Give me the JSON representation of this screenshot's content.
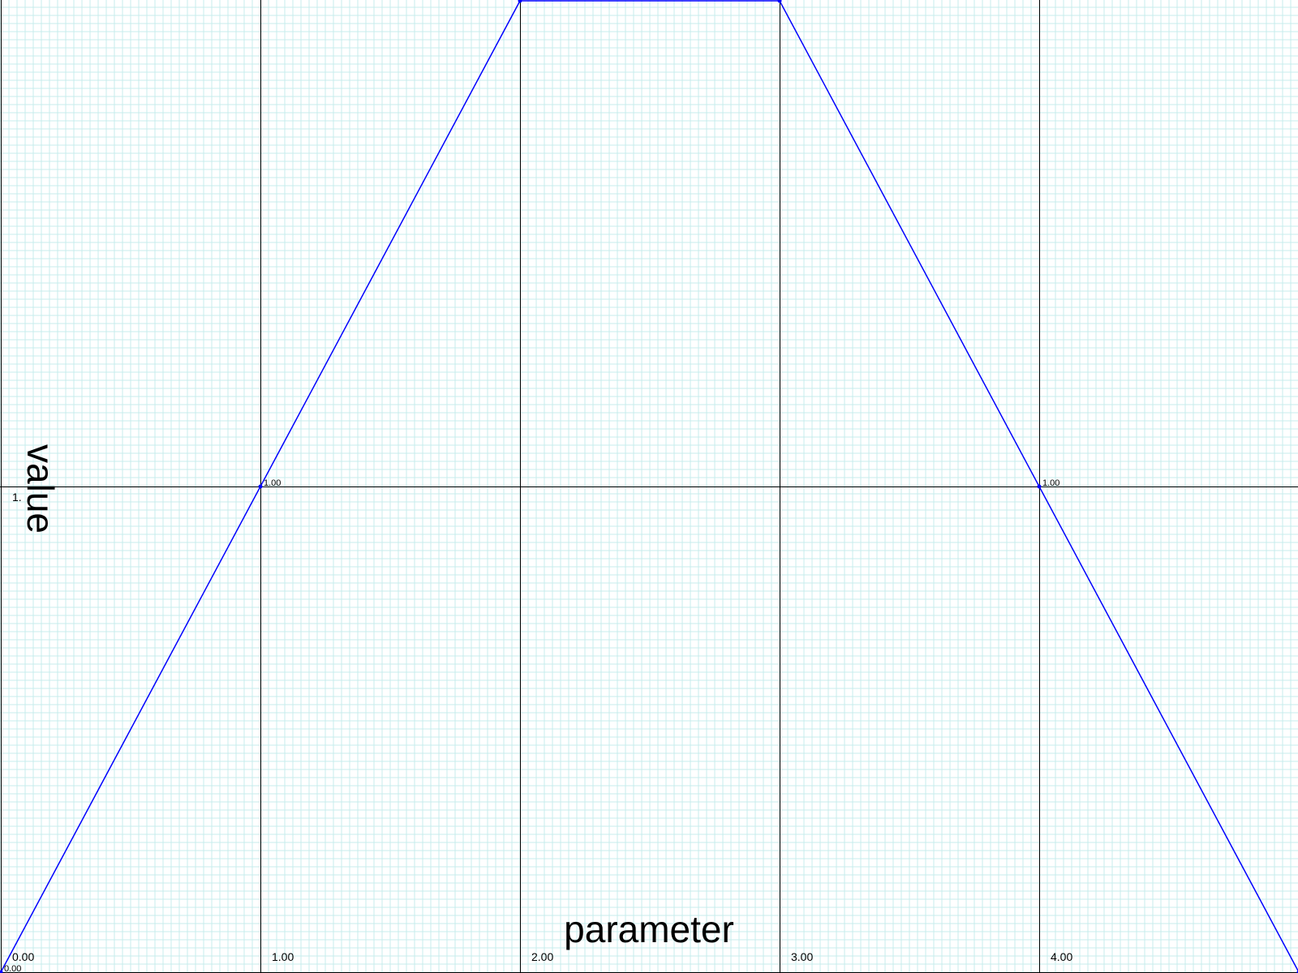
{
  "chart_data": {
    "type": "line",
    "title": "",
    "xlabel": "parameter",
    "ylabel": "value",
    "xlim": [
      0,
      5
    ],
    "ylim": [
      0,
      2
    ],
    "x_major_ticks": [
      0,
      1,
      2,
      3,
      4
    ],
    "x_tick_labels": [
      "0.00",
      "1.00",
      "2.00",
      "3.00",
      "4.00"
    ],
    "y_major_ticks": [
      1
    ],
    "y_tick_labels": [
      "1."
    ],
    "grid": true,
    "series": [
      {
        "color": "#0000ff",
        "x": [
          0,
          1,
          2,
          3,
          4,
          5
        ],
        "y": [
          0,
          1,
          2,
          2,
          1,
          0
        ]
      }
    ],
    "point_labels": [
      {
        "x": 0,
        "y": 0,
        "text": "0.00"
      },
      {
        "x": 1,
        "y": 1,
        "text": "1.00"
      },
      {
        "x": 4,
        "y": 1,
        "text": "1.00"
      }
    ]
  }
}
